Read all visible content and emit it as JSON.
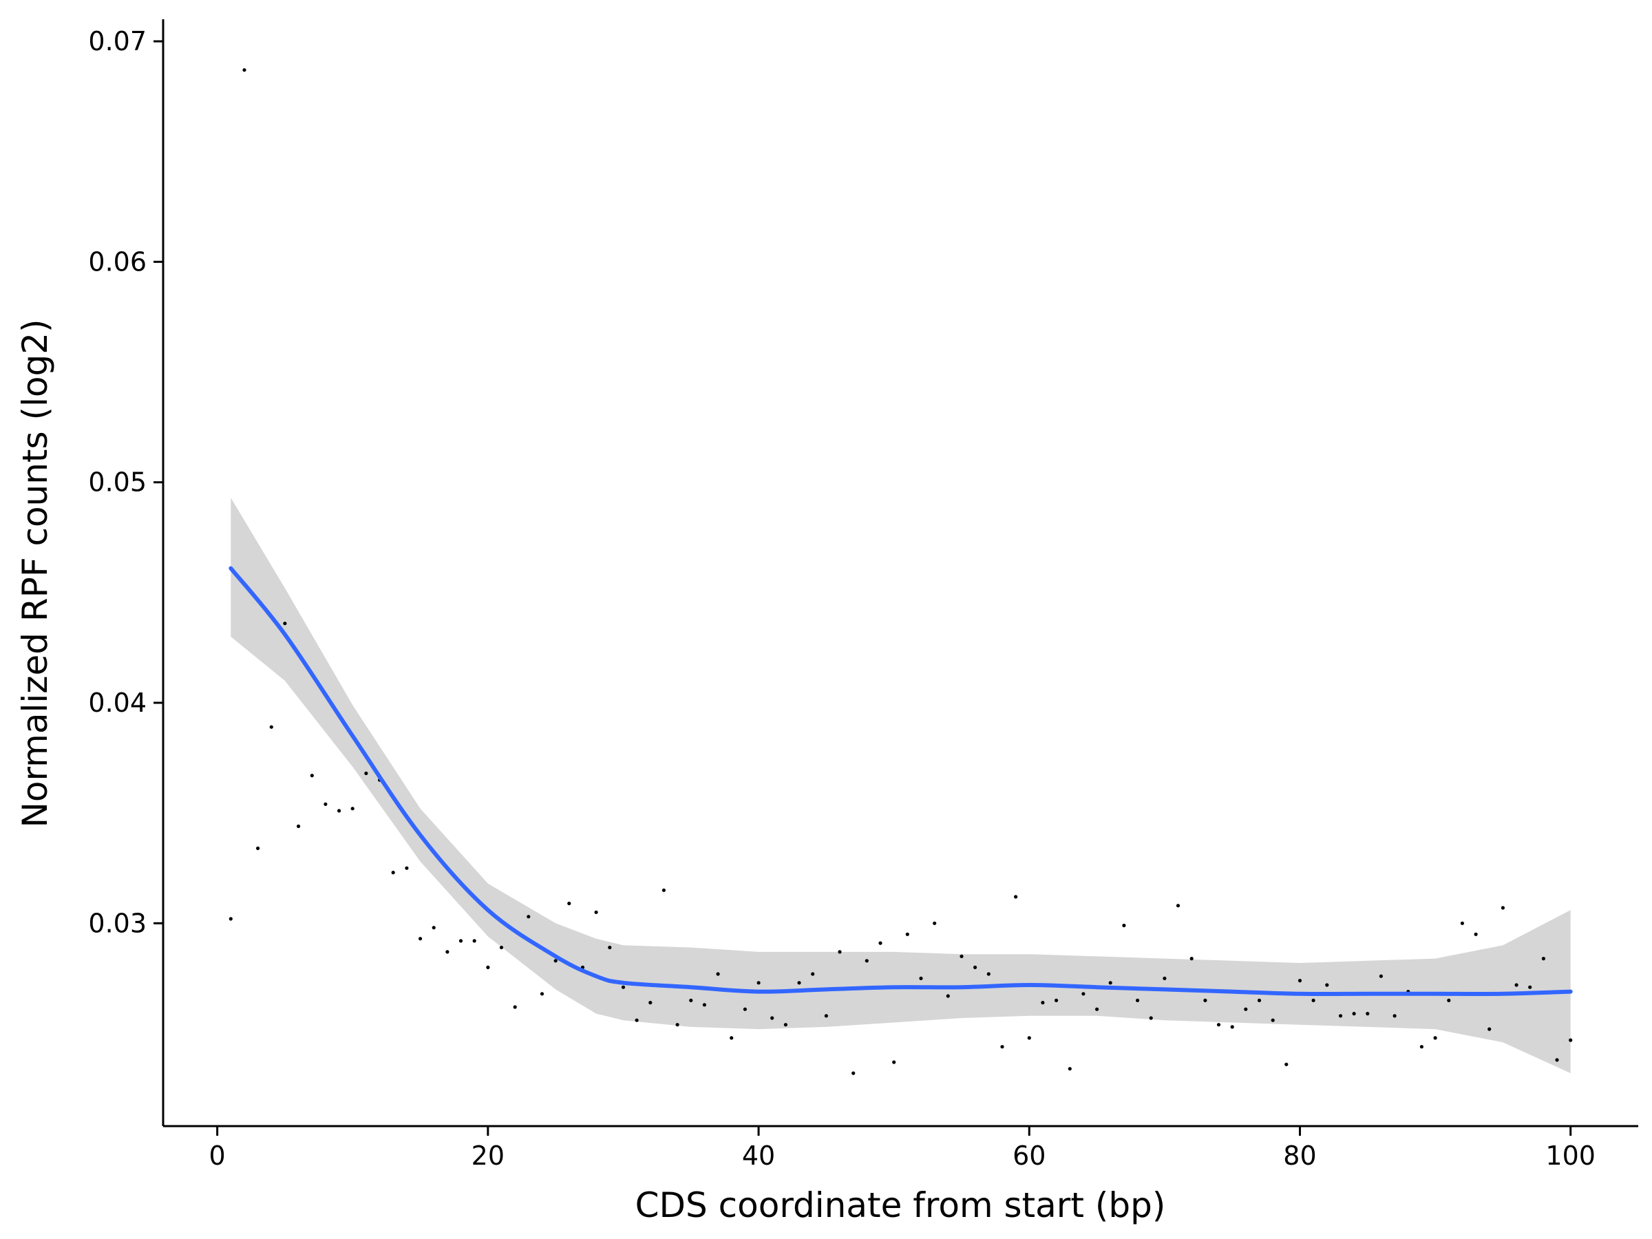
{
  "chart_data": {
    "type": "scatter",
    "xlabel": "CDS coordinate from start (bp)",
    "ylabel": "Normalized RPF counts (log2)",
    "xlim": [
      -4,
      105
    ],
    "ylim": [
      0.0208,
      0.071
    ],
    "xticks": [
      0,
      20,
      40,
      60,
      80,
      100
    ],
    "yticks": [
      0.03,
      0.04,
      0.05,
      0.06,
      0.07
    ],
    "x_tick_labels": [
      "0",
      "20",
      "40",
      "60",
      "80",
      "100"
    ],
    "y_tick_labels": [
      "0.03",
      "0.04",
      "0.05",
      "0.06",
      "0.07"
    ],
    "grid": false,
    "colors": {
      "points": "#000000",
      "smooth_line": "#3366ff",
      "confidence_band": "#d6d6d6",
      "axes": "#000000"
    },
    "points": [
      [
        1,
        0.0302
      ],
      [
        2,
        0.0687
      ],
      [
        3,
        0.0334
      ],
      [
        4,
        0.0389
      ],
      [
        5,
        0.0436
      ],
      [
        6,
        0.0344
      ],
      [
        7,
        0.0367
      ],
      [
        8,
        0.0354
      ],
      [
        9,
        0.0351
      ],
      [
        10,
        0.0352
      ],
      [
        11,
        0.0368
      ],
      [
        12,
        0.0365
      ],
      [
        13,
        0.0323
      ],
      [
        14,
        0.0325
      ],
      [
        15,
        0.0293
      ],
      [
        16,
        0.0298
      ],
      [
        17,
        0.0287
      ],
      [
        18,
        0.0292
      ],
      [
        19,
        0.0292
      ],
      [
        20,
        0.028
      ],
      [
        21,
        0.0289
      ],
      [
        22,
        0.0262
      ],
      [
        23,
        0.0303
      ],
      [
        24,
        0.0268
      ],
      [
        25,
        0.0283
      ],
      [
        26,
        0.0309
      ],
      [
        27,
        0.028
      ],
      [
        28,
        0.0305
      ],
      [
        29,
        0.0289
      ],
      [
        30,
        0.0271
      ],
      [
        31,
        0.0256
      ],
      [
        32,
        0.0264
      ],
      [
        33,
        0.0315
      ],
      [
        34,
        0.0254
      ],
      [
        35,
        0.0265
      ],
      [
        36,
        0.0263
      ],
      [
        37,
        0.0277
      ],
      [
        38,
        0.0248
      ],
      [
        39,
        0.0261
      ],
      [
        40,
        0.0273
      ],
      [
        41,
        0.0257
      ],
      [
        42,
        0.0254
      ],
      [
        43,
        0.0273
      ],
      [
        44,
        0.0277
      ],
      [
        45,
        0.0258
      ],
      [
        46,
        0.0287
      ],
      [
        47,
        0.0232
      ],
      [
        48,
        0.0283
      ],
      [
        49,
        0.0291
      ],
      [
        50,
        0.0237
      ],
      [
        51,
        0.0295
      ],
      [
        52,
        0.0275
      ],
      [
        53,
        0.03
      ],
      [
        54,
        0.0267
      ],
      [
        55,
        0.0285
      ],
      [
        56,
        0.028
      ],
      [
        57,
        0.0277
      ],
      [
        58,
        0.0244
      ],
      [
        59,
        0.0312
      ],
      [
        60,
        0.0248
      ],
      [
        61,
        0.0264
      ],
      [
        62,
        0.0265
      ],
      [
        63,
        0.0234
      ],
      [
        64,
        0.0268
      ],
      [
        65,
        0.0261
      ],
      [
        66,
        0.0273
      ],
      [
        67,
        0.0299
      ],
      [
        68,
        0.0265
      ],
      [
        69,
        0.0257
      ],
      [
        70,
        0.0275
      ],
      [
        71,
        0.0308
      ],
      [
        72,
        0.0284
      ],
      [
        73,
        0.0265
      ],
      [
        74,
        0.0254
      ],
      [
        75,
        0.0253
      ],
      [
        76,
        0.0261
      ],
      [
        77,
        0.0265
      ],
      [
        78,
        0.0256
      ],
      [
        79,
        0.0236
      ],
      [
        80,
        0.0274
      ],
      [
        81,
        0.0265
      ],
      [
        82,
        0.0272
      ],
      [
        83,
        0.0258
      ],
      [
        84,
        0.0259
      ],
      [
        85,
        0.0259
      ],
      [
        86,
        0.0276
      ],
      [
        87,
        0.0258
      ],
      [
        88,
        0.0269
      ],
      [
        89,
        0.0244
      ],
      [
        90,
        0.0248
      ],
      [
        91,
        0.0265
      ],
      [
        92,
        0.03
      ],
      [
        93,
        0.0295
      ],
      [
        94,
        0.0252
      ],
      [
        95,
        0.0307
      ],
      [
        96,
        0.0272
      ],
      [
        97,
        0.0271
      ],
      [
        98,
        0.0284
      ],
      [
        99,
        0.0238
      ],
      [
        100,
        0.0247
      ]
    ],
    "smooth": {
      "x": [
        1,
        5,
        10,
        15,
        20,
        25,
        28,
        30,
        35,
        40,
        45,
        50,
        55,
        60,
        65,
        70,
        75,
        80,
        85,
        90,
        95,
        100
      ],
      "y": [
        0.0461,
        0.0431,
        0.0385,
        0.034,
        0.0306,
        0.0285,
        0.0276,
        0.0273,
        0.0271,
        0.0269,
        0.027,
        0.0271,
        0.0271,
        0.0272,
        0.0271,
        0.027,
        0.0269,
        0.0268,
        0.0268,
        0.0268,
        0.0268,
        0.0269
      ],
      "lower": [
        0.043,
        0.041,
        0.0371,
        0.0328,
        0.0294,
        0.027,
        0.0259,
        0.0256,
        0.0253,
        0.0252,
        0.0253,
        0.0255,
        0.0257,
        0.0258,
        0.0258,
        0.0256,
        0.0255,
        0.0254,
        0.0253,
        0.0252,
        0.0246,
        0.0232
      ],
      "upper": [
        0.0493,
        0.0452,
        0.0399,
        0.0352,
        0.0318,
        0.03,
        0.0293,
        0.029,
        0.0289,
        0.0287,
        0.0287,
        0.0287,
        0.0286,
        0.0286,
        0.0285,
        0.0284,
        0.0283,
        0.0282,
        0.0283,
        0.0284,
        0.029,
        0.0306
      ]
    }
  }
}
